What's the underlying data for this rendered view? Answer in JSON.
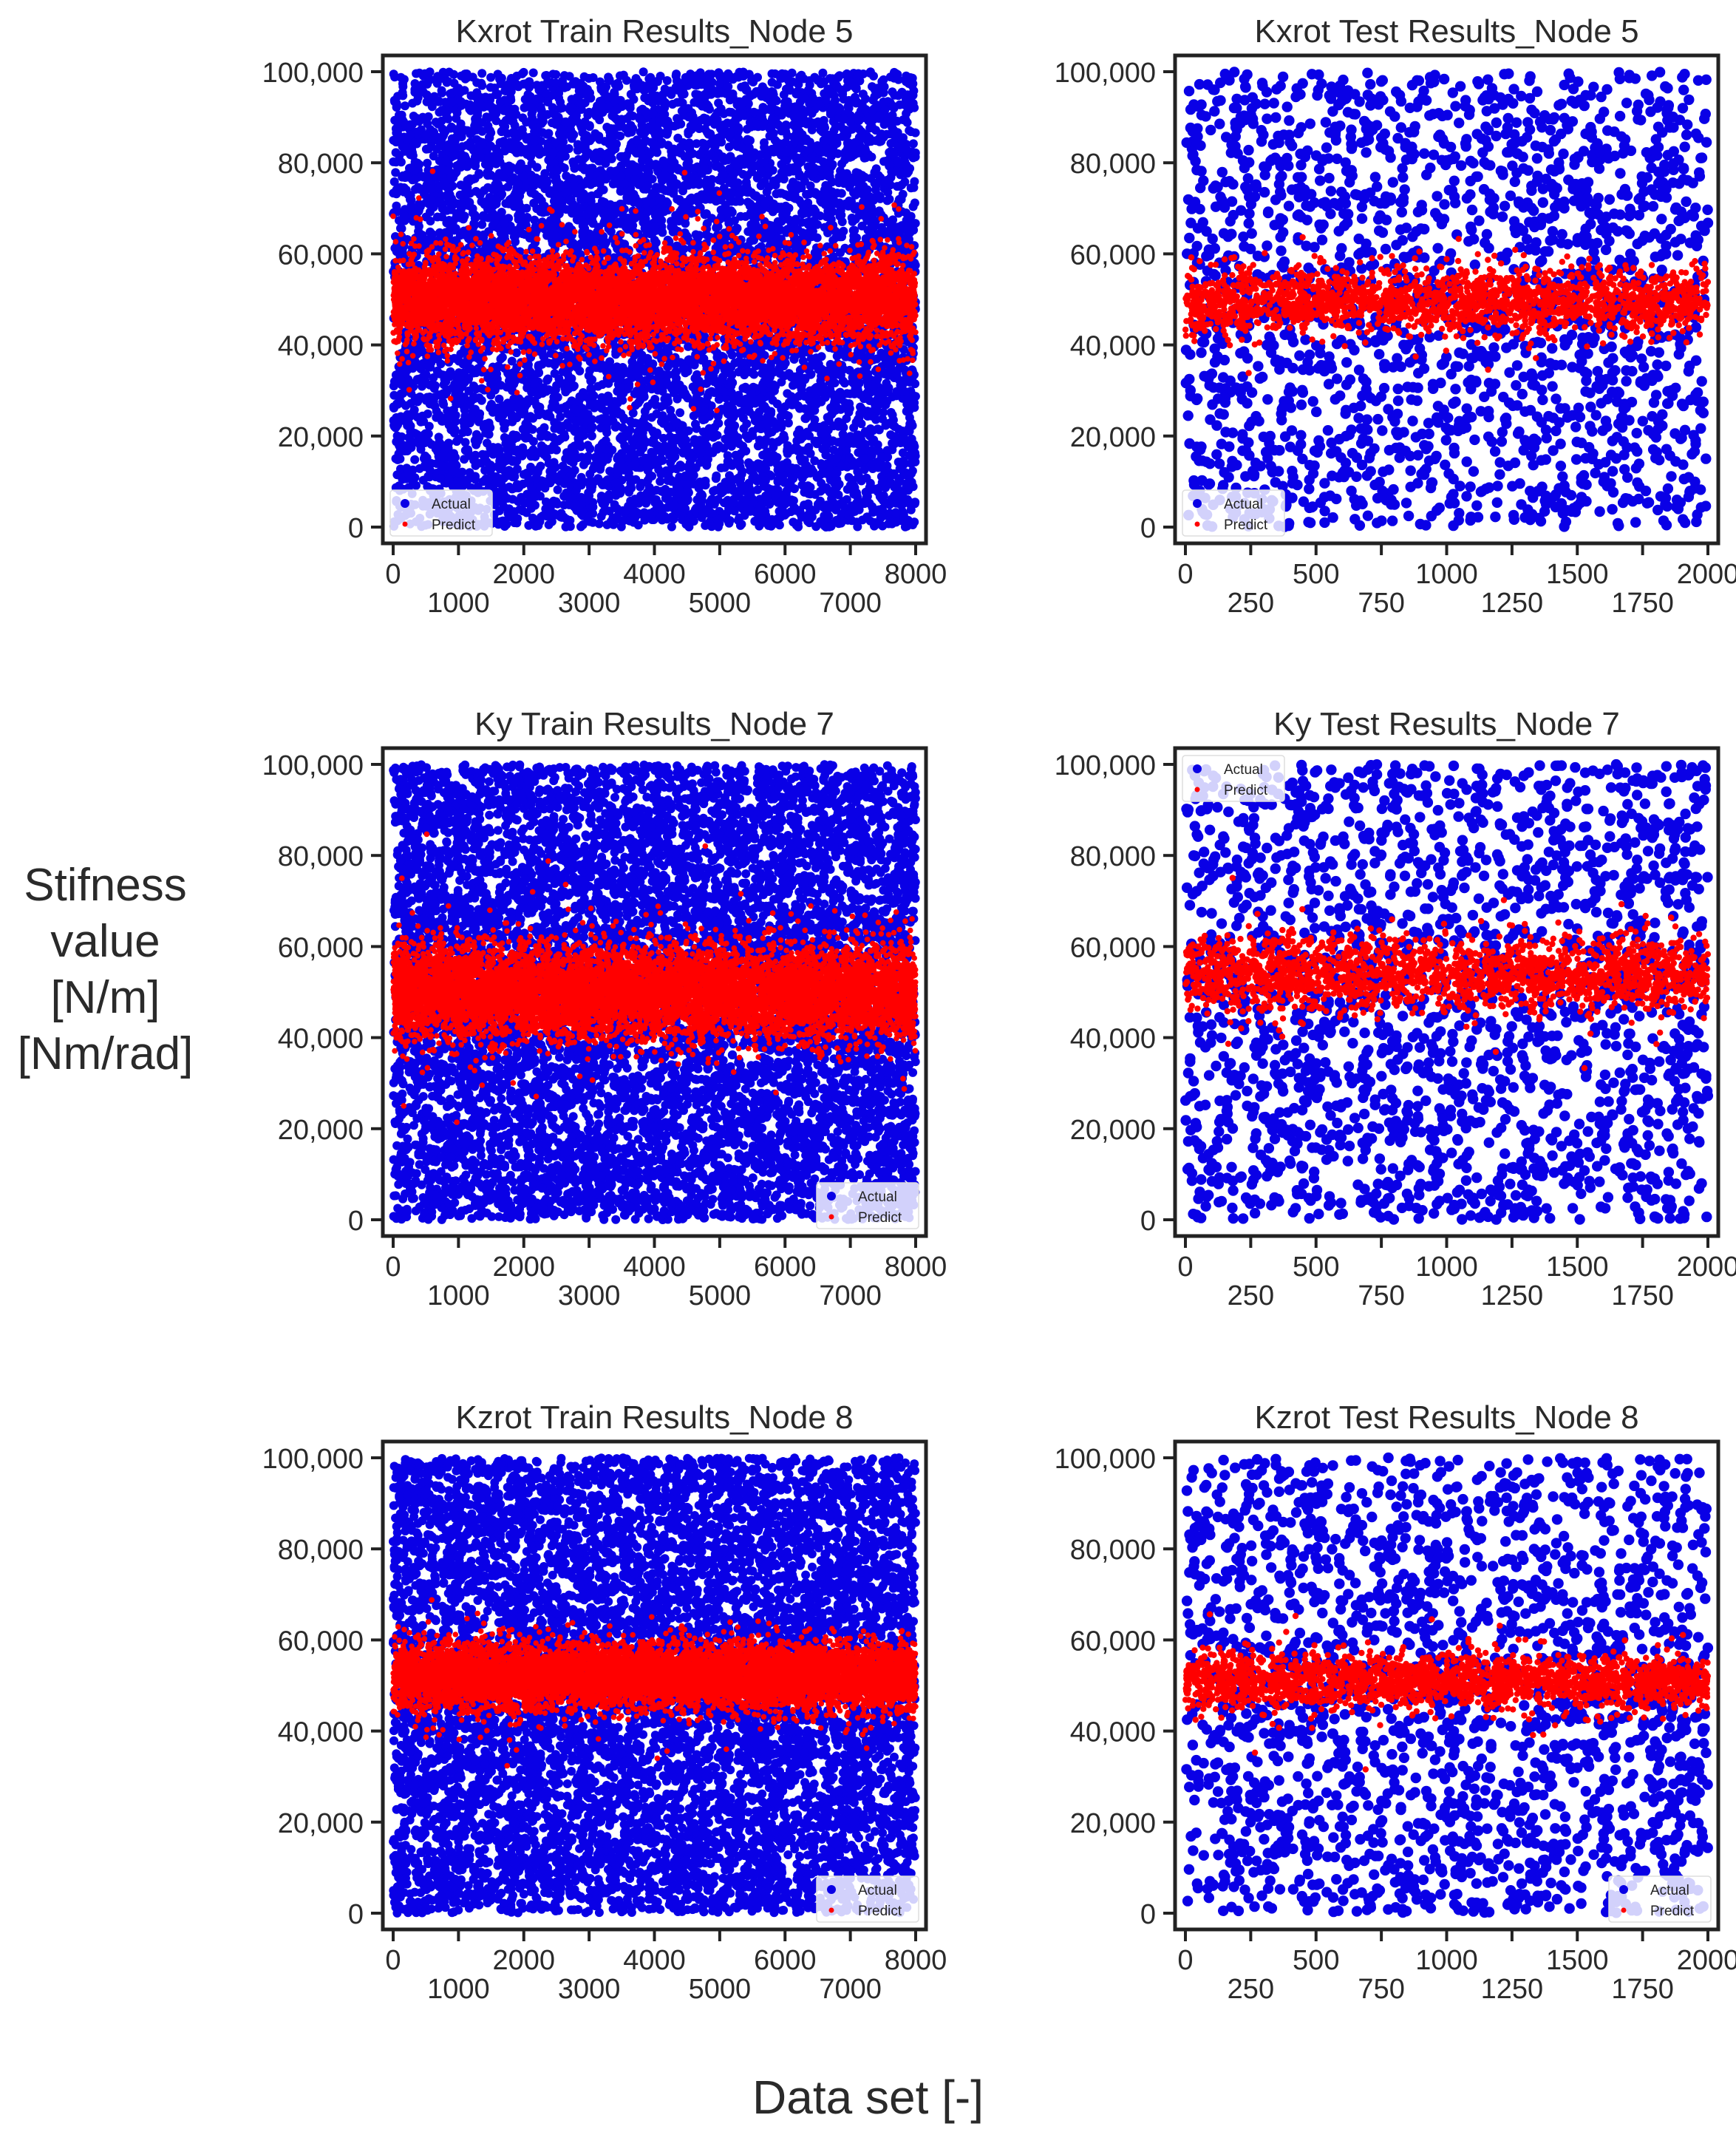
{
  "figure": {
    "ylabel_lines": [
      "Stifness",
      "value",
      "[N/m]",
      "[Nm/rad]"
    ],
    "xlabel": "Data set [-]"
  },
  "colors": {
    "actual": "#0a00e6",
    "predict": "#ff0000",
    "axes": "#222222",
    "background": "#ffffff"
  },
  "chart_data": [
    {
      "type": "scatter",
      "title": "Kxrot Train Results_Node 5",
      "xlim": [
        0,
        8000
      ],
      "ylim": [
        0,
        100000
      ],
      "xticks_major": [
        0,
        2000,
        4000,
        6000,
        8000
      ],
      "xticks_minor": [
        1000,
        3000,
        5000,
        7000
      ],
      "yticks": [
        0,
        20000,
        40000,
        60000,
        80000,
        100000
      ],
      "ytick_labels": [
        "0",
        "20,000",
        "40,000",
        "60,000",
        "80,000",
        "100,000"
      ],
      "legend": {
        "position": "lower left",
        "entries": [
          "Actual",
          "Predict"
        ]
      },
      "series": [
        {
          "name": "Actual",
          "color": "#0a00e6",
          "distribution": "uniform",
          "n_points": 8000,
          "x_range": [
            0,
            8000
          ],
          "y_range": [
            0,
            100000
          ]
        },
        {
          "name": "Predict",
          "color": "#ff0000",
          "distribution": "band",
          "n_points": 8000,
          "x_range": [
            0,
            8000
          ],
          "y_center": 50000,
          "y_spread": 4500
        }
      ]
    },
    {
      "type": "scatter",
      "title": "Kxrot Test Results_Node 5",
      "xlim": [
        0,
        2000
      ],
      "ylim": [
        0,
        100000
      ],
      "xticks_major": [
        0,
        500,
        1000,
        1500,
        2000
      ],
      "xticks_minor": [
        250,
        750,
        1250,
        1750
      ],
      "yticks": [
        0,
        20000,
        40000,
        60000,
        80000,
        100000
      ],
      "ytick_labels": [
        "0",
        "20,000",
        "40,000",
        "60,000",
        "80,000",
        "100,000"
      ],
      "legend": {
        "position": "lower left",
        "entries": [
          "Actual",
          "Predict"
        ]
      },
      "series": [
        {
          "name": "Actual",
          "color": "#0a00e6",
          "distribution": "uniform",
          "n_points": 2000,
          "x_range": [
            0,
            2000
          ],
          "y_range": [
            0,
            100000
          ]
        },
        {
          "name": "Predict",
          "color": "#ff0000",
          "distribution": "band",
          "n_points": 2000,
          "x_range": [
            0,
            2000
          ],
          "y_center": 49500,
          "y_spread": 3500
        }
      ]
    },
    {
      "type": "scatter",
      "title": "Ky Train Results_Node 7",
      "xlim": [
        0,
        8000
      ],
      "ylim": [
        0,
        100000
      ],
      "xticks_major": [
        0,
        2000,
        4000,
        6000,
        8000
      ],
      "xticks_minor": [
        1000,
        3000,
        5000,
        7000
      ],
      "yticks": [
        0,
        20000,
        40000,
        60000,
        80000,
        100000
      ],
      "ytick_labels": [
        "0",
        "20,000",
        "40,000",
        "60,000",
        "80,000",
        "100,000"
      ],
      "legend": {
        "position": "lower right",
        "entries": [
          "Actual",
          "Predict"
        ]
      },
      "series": [
        {
          "name": "Actual",
          "color": "#0a00e6",
          "distribution": "uniform",
          "n_points": 8000,
          "x_range": [
            0,
            8000
          ],
          "y_range": [
            0,
            100000
          ]
        },
        {
          "name": "Predict",
          "color": "#ff0000",
          "distribution": "band",
          "n_points": 8000,
          "x_range": [
            0,
            8000
          ],
          "y_center": 50000,
          "y_spread": 5000
        }
      ]
    },
    {
      "type": "scatter",
      "title": "Ky Test Results_Node 7",
      "xlim": [
        0,
        2000
      ],
      "ylim": [
        0,
        100000
      ],
      "xticks_major": [
        0,
        500,
        1000,
        1500,
        2000
      ],
      "xticks_minor": [
        250,
        750,
        1250,
        1750
      ],
      "yticks": [
        0,
        20000,
        40000,
        60000,
        80000,
        100000
      ],
      "ytick_labels": [
        "0",
        "20,000",
        "40,000",
        "60,000",
        "80,000",
        "100,000"
      ],
      "legend": {
        "position": "upper left",
        "entries": [
          "Actual",
          "Predict"
        ]
      },
      "series": [
        {
          "name": "Actual",
          "color": "#0a00e6",
          "distribution": "uniform",
          "n_points": 2000,
          "x_range": [
            0,
            2000
          ],
          "y_range": [
            0,
            100000
          ]
        },
        {
          "name": "Predict",
          "color": "#ff0000",
          "distribution": "band",
          "n_points": 2000,
          "x_range": [
            0,
            2000
          ],
          "y_center": 54000,
          "y_spread": 4000
        }
      ]
    },
    {
      "type": "scatter",
      "title": "Kzrot Train Results_Node 8",
      "xlim": [
        0,
        8000
      ],
      "ylim": [
        0,
        100000
      ],
      "xticks_major": [
        0,
        2000,
        4000,
        6000,
        8000
      ],
      "xticks_minor": [
        1000,
        3000,
        5000,
        7000
      ],
      "yticks": [
        0,
        20000,
        40000,
        60000,
        80000,
        100000
      ],
      "ytick_labels": [
        "0",
        "20,000",
        "40,000",
        "60,000",
        "80,000",
        "100,000"
      ],
      "legend": {
        "position": "lower right",
        "entries": [
          "Actual",
          "Predict"
        ]
      },
      "series": [
        {
          "name": "Actual",
          "color": "#0a00e6",
          "distribution": "uniform",
          "n_points": 8000,
          "x_range": [
            0,
            8000
          ],
          "y_range": [
            0,
            100000
          ]
        },
        {
          "name": "Predict",
          "color": "#ff0000",
          "distribution": "band",
          "n_points": 8000,
          "x_range": [
            0,
            8000
          ],
          "y_center": 52000,
          "y_spread": 3500
        }
      ]
    },
    {
      "type": "scatter",
      "title": "Kzrot Test Results_Node 8",
      "xlim": [
        0,
        2000
      ],
      "ylim": [
        0,
        100000
      ],
      "xticks_major": [
        0,
        500,
        1000,
        1500,
        2000
      ],
      "xticks_minor": [
        250,
        750,
        1250,
        1750
      ],
      "yticks": [
        0,
        20000,
        40000,
        60000,
        80000,
        100000
      ],
      "ytick_labels": [
        "0",
        "20,000",
        "40,000",
        "60,000",
        "80,000",
        "100,000"
      ],
      "legend": {
        "position": "lower right",
        "entries": [
          "Actual",
          "Predict"
        ]
      },
      "series": [
        {
          "name": "Actual",
          "color": "#0a00e6",
          "distribution": "uniform",
          "n_points": 2000,
          "x_range": [
            0,
            2000
          ],
          "y_range": [
            0,
            100000
          ]
        },
        {
          "name": "Predict",
          "color": "#ff0000",
          "distribution": "band",
          "n_points": 2000,
          "x_range": [
            0,
            2000
          ],
          "y_center": 51000,
          "y_spread": 3000
        }
      ]
    }
  ]
}
